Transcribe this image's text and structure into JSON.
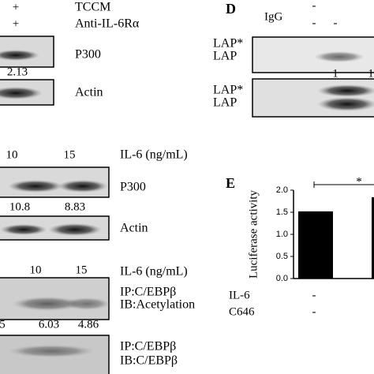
{
  "panel_a": {
    "conditions": [
      {
        "sign": "+",
        "label": "TCCM"
      },
      {
        "sign": "+",
        "label": "Anti-IL-6Rα"
      }
    ],
    "bands": [
      {
        "label": "P300",
        "quant": "2.13"
      },
      {
        "label": "Actin"
      }
    ]
  },
  "panel_b": {
    "doses": [
      "10",
      "15"
    ],
    "dose_label": "IL-6 (ng/mL)",
    "bands": [
      {
        "label": "P300",
        "quants": [
          "10.8",
          "8.83"
        ]
      },
      {
        "label": "Actin"
      }
    ]
  },
  "panel_c": {
    "doses": [
      "10",
      "15"
    ],
    "dose_label": "IL-6 (ng/mL)",
    "bands": [
      {
        "lines": [
          "IP:C/EBPβ",
          "IB:Acetylation"
        ],
        "quants": [
          "5",
          "6.03",
          "4.86"
        ]
      },
      {
        "lines": [
          "IP:C/EBPβ",
          "IB:C/EBPβ"
        ]
      }
    ]
  },
  "panel_d": {
    "letter": "D",
    "top_sign": "-",
    "igg": {
      "label": "IgG",
      "signs": [
        "-",
        "-"
      ]
    },
    "bands": [
      {
        "lines": [
          "LAP*",
          "LAP"
        ],
        "quants": [
          "1",
          "1"
        ]
      },
      {
        "lines": [
          "LAP*",
          "LAP"
        ]
      }
    ]
  },
  "panel_e": {
    "letter": "E",
    "significance": "*",
    "conditions": [
      {
        "label": "IL-6",
        "sign": "-"
      },
      {
        "label": "C646",
        "sign": "-"
      }
    ]
  },
  "chart_data": {
    "type": "bar",
    "y_label": "Luciferase activity",
    "categories": [
      null,
      null
    ],
    "values": [
      1.52,
      1.84
    ],
    "color": "#000000",
    "ylim": [
      0,
      2.0
    ],
    "yticks": [
      {
        "value": 0,
        "label": "0.0"
      },
      {
        "value": 0.5,
        "label": "0.5"
      },
      {
        "value": 1.0,
        "label": "1.0"
      },
      {
        "value": 1.5,
        "label": "1.5"
      },
      {
        "value": 2.0,
        "label": "2.0"
      }
    ]
  }
}
